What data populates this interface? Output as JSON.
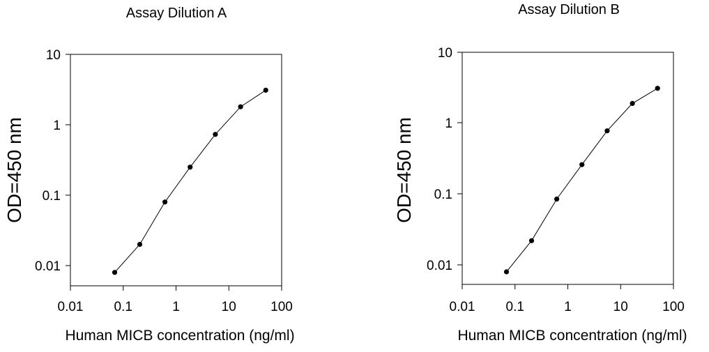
{
  "chart_data": [
    {
      "type": "line",
      "title": "Assay Dilution A",
      "xlabel": "Human MICB concentration (ng/ml)",
      "ylabel": "OD=450 nm",
      "xscale": "log",
      "yscale": "log",
      "xlim": [
        0.01,
        100
      ],
      "ylim": [
        0.005,
        10
      ],
      "xticks": [
        0.01,
        0.1,
        1,
        10,
        100
      ],
      "xtick_labels": [
        "0.01",
        "0.1",
        "1",
        "10",
        "100"
      ],
      "yticks": [
        0.01,
        0.1,
        1,
        10
      ],
      "ytick_labels": [
        "0.01",
        "0.1",
        "1",
        "10"
      ],
      "grid": false,
      "series": [
        {
          "name": "Assay Dilution A",
          "x": [
            0.069,
            0.206,
            0.617,
            1.85,
            5.56,
            16.7,
            50
          ],
          "y": [
            0.008,
            0.02,
            0.08,
            0.25,
            0.73,
            1.8,
            3.1
          ]
        }
      ]
    },
    {
      "type": "line",
      "title": "Assay Dilution B",
      "xlabel": "Human MICB concentration (ng/ml)",
      "ylabel": "OD=450 nm",
      "xscale": "log",
      "yscale": "log",
      "xlim": [
        0.01,
        100
      ],
      "ylim": [
        0.005,
        10
      ],
      "xticks": [
        0.01,
        0.1,
        1,
        10,
        100
      ],
      "xtick_labels": [
        "0.01",
        "0.1",
        "1",
        "10",
        "100"
      ],
      "yticks": [
        0.01,
        0.1,
        1,
        10
      ],
      "ytick_labels": [
        "0.01",
        "0.1",
        "1",
        "10"
      ],
      "grid": false,
      "series": [
        {
          "name": "Assay Dilution B",
          "x": [
            0.069,
            0.206,
            0.617,
            1.85,
            5.56,
            16.7,
            50
          ],
          "y": [
            0.008,
            0.022,
            0.085,
            0.26,
            0.78,
            1.9,
            3.1
          ]
        }
      ]
    }
  ],
  "colors": {
    "line": "#000000",
    "marker": "#000000",
    "axis": "#000000",
    "background": "#ffffff"
  }
}
